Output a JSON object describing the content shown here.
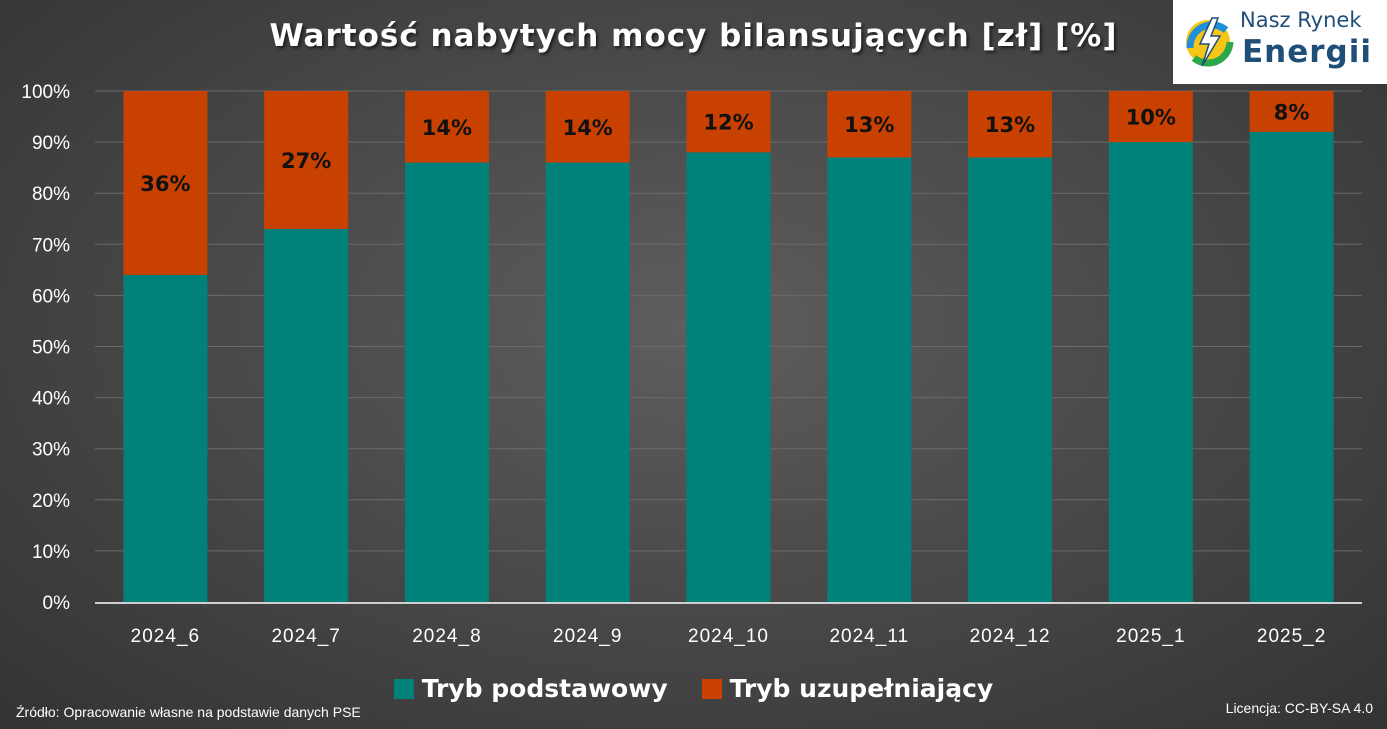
{
  "title": "Wartość nabytych mocy bilansujących [zł] [%]",
  "logo": {
    "line1": "Nasz Rynek",
    "line2": "Energii",
    "icon": "lightning-globe-icon"
  },
  "source": "Źródło: Opracowanie własne na podstawie danych PSE",
  "license": "Licencja: CC-BY-SA 4.0",
  "colors": {
    "basic": "#00827a",
    "supplementary": "#c84100",
    "background": "#4a4a4a"
  },
  "legend": [
    {
      "label": "Tryb podstawowy",
      "color": "#00827a"
    },
    {
      "label": "Tryb uzupełniający",
      "color": "#c84100"
    }
  ],
  "chart_data": {
    "type": "bar",
    "stacked": true,
    "categories": [
      "2024_6",
      "2024_7",
      "2024_8",
      "2024_9",
      "2024_10",
      "2024_11",
      "2024_12",
      "2025_1",
      "2025_2"
    ],
    "series": [
      {
        "name": "Tryb podstawowy",
        "values": [
          64,
          73,
          86,
          86,
          88,
          87,
          87,
          90,
          92
        ]
      },
      {
        "name": "Tryb uzupełniający",
        "values": [
          36,
          27,
          14,
          14,
          12,
          13,
          13,
          10,
          8
        ]
      }
    ],
    "data_labels": [
      "36%",
      "27%",
      "14%",
      "14%",
      "12%",
      "13%",
      "13%",
      "10%",
      "8%"
    ],
    "yticks": [
      "0%",
      "10%",
      "20%",
      "30%",
      "40%",
      "50%",
      "60%",
      "70%",
      "80%",
      "90%",
      "100%"
    ],
    "ylim": [
      0,
      100
    ],
    "grid": true,
    "legend_position": "bottom"
  }
}
